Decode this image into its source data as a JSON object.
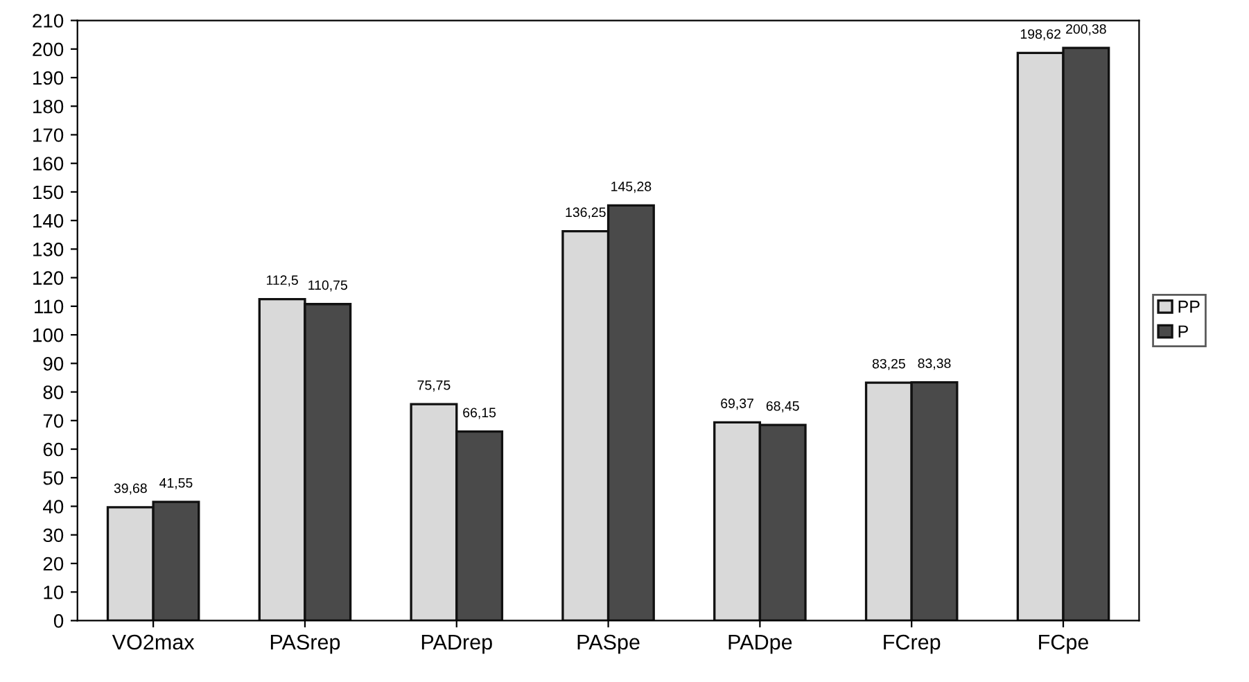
{
  "chart_data": {
    "type": "bar",
    "categories": [
      "VO2max",
      "PASrep",
      "PADrep",
      "PASpe",
      "PADpe",
      "FCrep",
      "FCpe"
    ],
    "series": [
      {
        "name": "PP",
        "color": "#d9d9d9",
        "values": [
          39.68,
          112.5,
          75.75,
          136.25,
          69.37,
          83.25,
          198.62
        ],
        "value_labels": [
          "39,68",
          "112,5",
          "75,75",
          "136,25",
          "69,37",
          "83,25",
          "198,62"
        ]
      },
      {
        "name": "P",
        "color": "#4a4a4a",
        "values": [
          41.55,
          110.75,
          66.15,
          145.28,
          68.45,
          83.38,
          200.38
        ],
        "value_labels": [
          "41,55",
          "110,75",
          "66,15",
          "145,28",
          "68,45",
          "83,38",
          "200,38"
        ]
      }
    ],
    "ylim": [
      0,
      210
    ],
    "yticks": [
      0,
      10,
      20,
      30,
      40,
      50,
      60,
      70,
      80,
      90,
      100,
      110,
      120,
      130,
      140,
      150,
      160,
      170,
      180,
      190,
      200,
      210
    ],
    "grid": false,
    "legend": "right"
  }
}
